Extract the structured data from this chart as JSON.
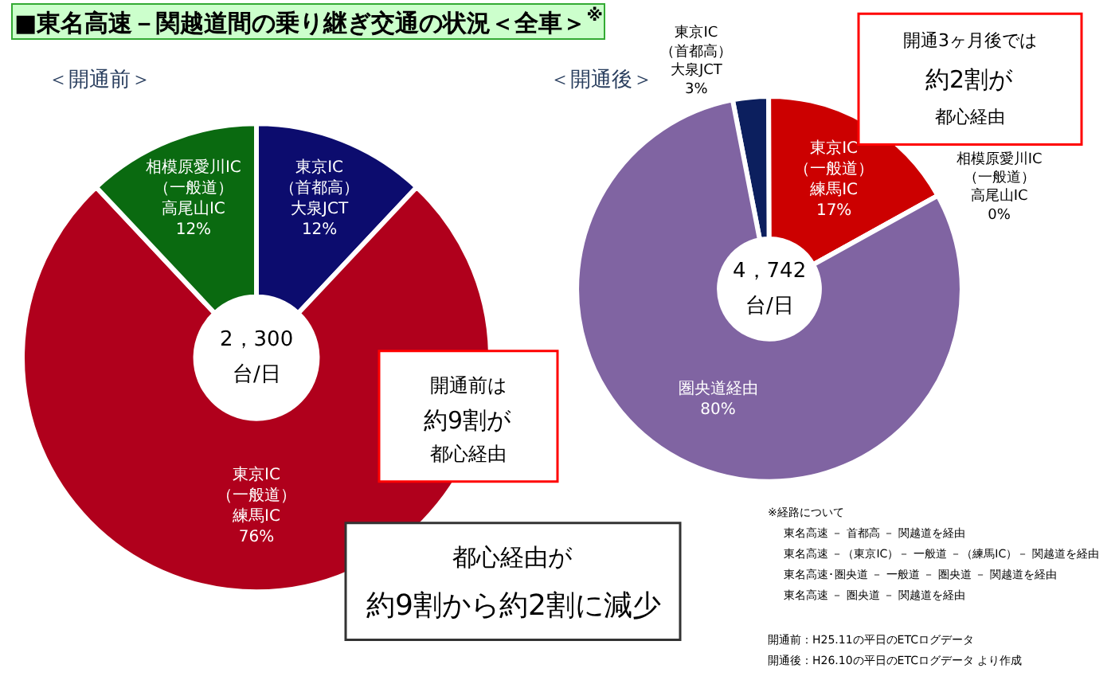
{
  "chart_data": [
    {
      "type": "donut",
      "title": "■東名高速－関越道間の乗り継ぎ交通の状況＜全車＞$^{※}$",
      "subtitle": "＜開通前＞",
      "categories": [
        "東京IC（首都高）大泉JCT",
        "東京IC（一般道）練馬IC",
        "相模原愛川IC（一般道）高尾山IC"
      ],
      "values": [
        12,
        76,
        12
      ],
      "value_labels": [
        "12%",
        "76%",
        "12%"
      ],
      "colors": [
        "#0c0c6e",
        "#b0001c",
        "#0a6a10"
      ],
      "annotations": [
        "2，300",
        "台/日",
        "開通前は",
        "約9割が",
        "都心経由",
        "都心経由が",
        "約9割から約2割に減少"
      ]
    },
    {
      "type": "donut",
      "title": "＜開通後＞",
      "categories": [
        "東京IC（首都高）大泉JCT",
        "東京IC（一般道）練馬IC",
        "相模原愛川IC（一般道）高尾山IC",
        "圏央道経由"
      ],
      "values": [
        3,
        17,
        0,
        80
      ],
      "value_labels": [
        "3%",
        "17%",
        "0%",
        "80%"
      ],
      "colors": [
        "#0c1f5e",
        "#cc0000",
        "#0a6a10",
        "#8064a2"
      ],
      "annotations": [
        "4，742",
        "台/日",
        "開通3ヶ月後では",
        "約2割が",
        "都心経由",
        "※経路について",
        "東名高速 － 首都高 － 関越道を経由",
        "東名高速 －（東京IC）－ 一般道 －（練馬IC）－ 関越道を経由",
        "東名高速･圏央道 － 一般道 － 圏央道 － 関越道を経由",
        "東名高速 － 圏央道 － 関越道を経由",
        "開通前：H25.11の平日のETCログデータ",
        "開通後：H26.10の平日のETCログデータ より作成"
      ]
    }
  ]
}
